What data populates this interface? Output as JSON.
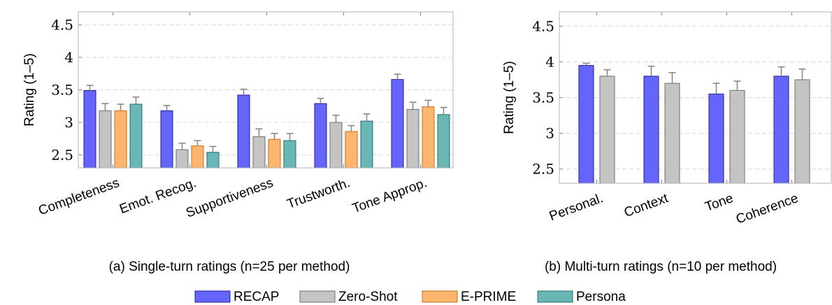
{
  "chart_data": [
    {
      "type": "bar",
      "ylabel": "Rating (1–5)",
      "ylim": [
        2.3,
        4.7
      ],
      "yticks": [
        2.5,
        3,
        3.5,
        4,
        4.5
      ],
      "ytick_labels": [
        "2.5",
        "3",
        "3.5",
        "4",
        "4.5"
      ],
      "grid": "horizontal dashed",
      "categories": [
        "Completeness",
        "Emot. Recog.",
        "Supportiveness",
        "Trustworth.",
        "Tone Approp."
      ],
      "series": [
        {
          "name": "RECAP",
          "values": [
            3.49,
            3.18,
            3.42,
            3.29,
            3.66
          ],
          "errors": [
            0.08,
            0.08,
            0.09,
            0.08,
            0.08
          ]
        },
        {
          "name": "Zero-Shot",
          "values": [
            3.18,
            2.58,
            2.78,
            3.0,
            3.2
          ],
          "errors": [
            0.11,
            0.1,
            0.12,
            0.11,
            0.11
          ]
        },
        {
          "name": "E-PRIME",
          "values": [
            3.18,
            2.64,
            2.74,
            2.86,
            3.24
          ],
          "errors": [
            0.1,
            0.08,
            0.09,
            0.09,
            0.1
          ]
        },
        {
          "name": "Persona",
          "values": [
            3.28,
            2.54,
            2.72,
            3.02,
            3.12
          ],
          "errors": [
            0.11,
            0.09,
            0.11,
            0.11,
            0.11
          ]
        }
      ],
      "caption": "(a) Single-turn ratings (n=25 per method)"
    },
    {
      "type": "bar",
      "ylabel": "Rating (1–5)",
      "ylim": [
        2.3,
        4.7
      ],
      "yticks": [
        2.5,
        3,
        3.5,
        4,
        4.5
      ],
      "ytick_labels": [
        "2.5",
        "3",
        "3.5",
        "4",
        "4.5"
      ],
      "grid": "horizontal dashed",
      "categories": [
        "Personal.",
        "Context",
        "Tone",
        "Coherence"
      ],
      "series": [
        {
          "name": "RECAP",
          "values": [
            3.95,
            3.8,
            3.55,
            3.8
          ],
          "errors": [
            0.03,
            0.14,
            0.15,
            0.13
          ]
        },
        {
          "name": "Zero-Shot",
          "values": [
            3.8,
            3.7,
            3.6,
            3.75
          ],
          "errors": [
            0.09,
            0.15,
            0.13,
            0.15
          ]
        }
      ],
      "caption": "(b) Multi-turn ratings (n=10 per method)"
    }
  ],
  "legend": {
    "placement": "bottom-center",
    "items": [
      {
        "label": "RECAP",
        "fill": "#6565fb",
        "stroke": "#1d1d9a"
      },
      {
        "label": "Zero-Shot",
        "fill": "#c4c4c4",
        "stroke": "#6e6e6e"
      },
      {
        "label": "E-PRIME",
        "fill": "#fdb56f",
        "stroke": "#c0701d"
      },
      {
        "label": "Persona",
        "fill": "#69b6b4",
        "stroke": "#236f6d"
      }
    ]
  },
  "colors": {
    "RECAP": {
      "fill": "#6565fb",
      "stroke": "#1d1d9a"
    },
    "Zero-Shot": {
      "fill": "#c4c4c4",
      "stroke": "#6e6e6e"
    },
    "E-PRIME": {
      "fill": "#fdb56f",
      "stroke": "#c0701d"
    },
    "Persona": {
      "fill": "#69b6b4",
      "stroke": "#236f6d"
    },
    "errorbar": "#888888",
    "grid": "#d9d9d9",
    "axis": "#b3b3b3"
  }
}
